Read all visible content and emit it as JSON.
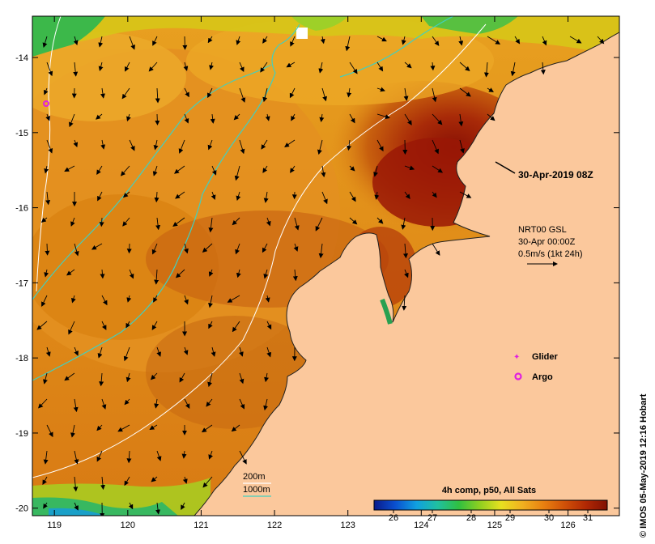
{
  "map": {
    "lon_range": [
      118.7,
      126.7
    ],
    "lat_range": [
      -20.1,
      -13.45
    ],
    "lon_ticks": [
      119,
      120,
      121,
      122,
      123,
      124,
      125,
      126
    ],
    "lat_ticks": [
      -14,
      -15,
      -16,
      -17,
      -18,
      -19,
      -20
    ],
    "lon_tick_labels": [
      "119",
      "120",
      "121",
      "122",
      "123",
      "124",
      "125",
      "126"
    ],
    "lat_tick_labels": [
      "-14",
      "-15",
      "-16",
      "-17",
      "-18",
      "-19",
      "-20"
    ],
    "colors": {
      "land": "#fbc89c",
      "warm_sea": "#e89a1e",
      "hot_sea": "#9c1a06",
      "mid_sea": "#d97a12",
      "cool_sea": "#cfd21e",
      "cold_sea": "#2fb85a",
      "isobath_200m": "#ffffff",
      "isobath_1000m": "#40d0c0",
      "glider": "#e020e0",
      "argo": "#e020e0"
    }
  },
  "annotations": {
    "timestamp": "30-Apr-2019 08Z",
    "current_source": "NRT00 GSL",
    "current_time": "30-Apr 00:00Z",
    "current_scale": "0.5m/s (1kt 24h)"
  },
  "legend": {
    "glider_label": "Glider",
    "argo_label": "Argo",
    "isobath_200m": "200m",
    "isobath_1000m": "1000m"
  },
  "colorbar": {
    "title": "4h comp, p50, All Sats",
    "min": 25.5,
    "max": 31.5,
    "ticks": [
      26,
      27,
      28,
      29,
      30,
      31
    ],
    "tick_labels": [
      "26",
      "27",
      "28",
      "29",
      "30",
      "31"
    ],
    "stops": [
      "#0a1a8a",
      "#0a50d0",
      "#10a0e0",
      "#20c0a0",
      "#30c040",
      "#90d020",
      "#e8e020",
      "#f0b020",
      "#e88010",
      "#d05008",
      "#b02804",
      "#801002"
    ]
  },
  "credit": "© IMOS 05-May-2019 12:16 Hobart"
}
